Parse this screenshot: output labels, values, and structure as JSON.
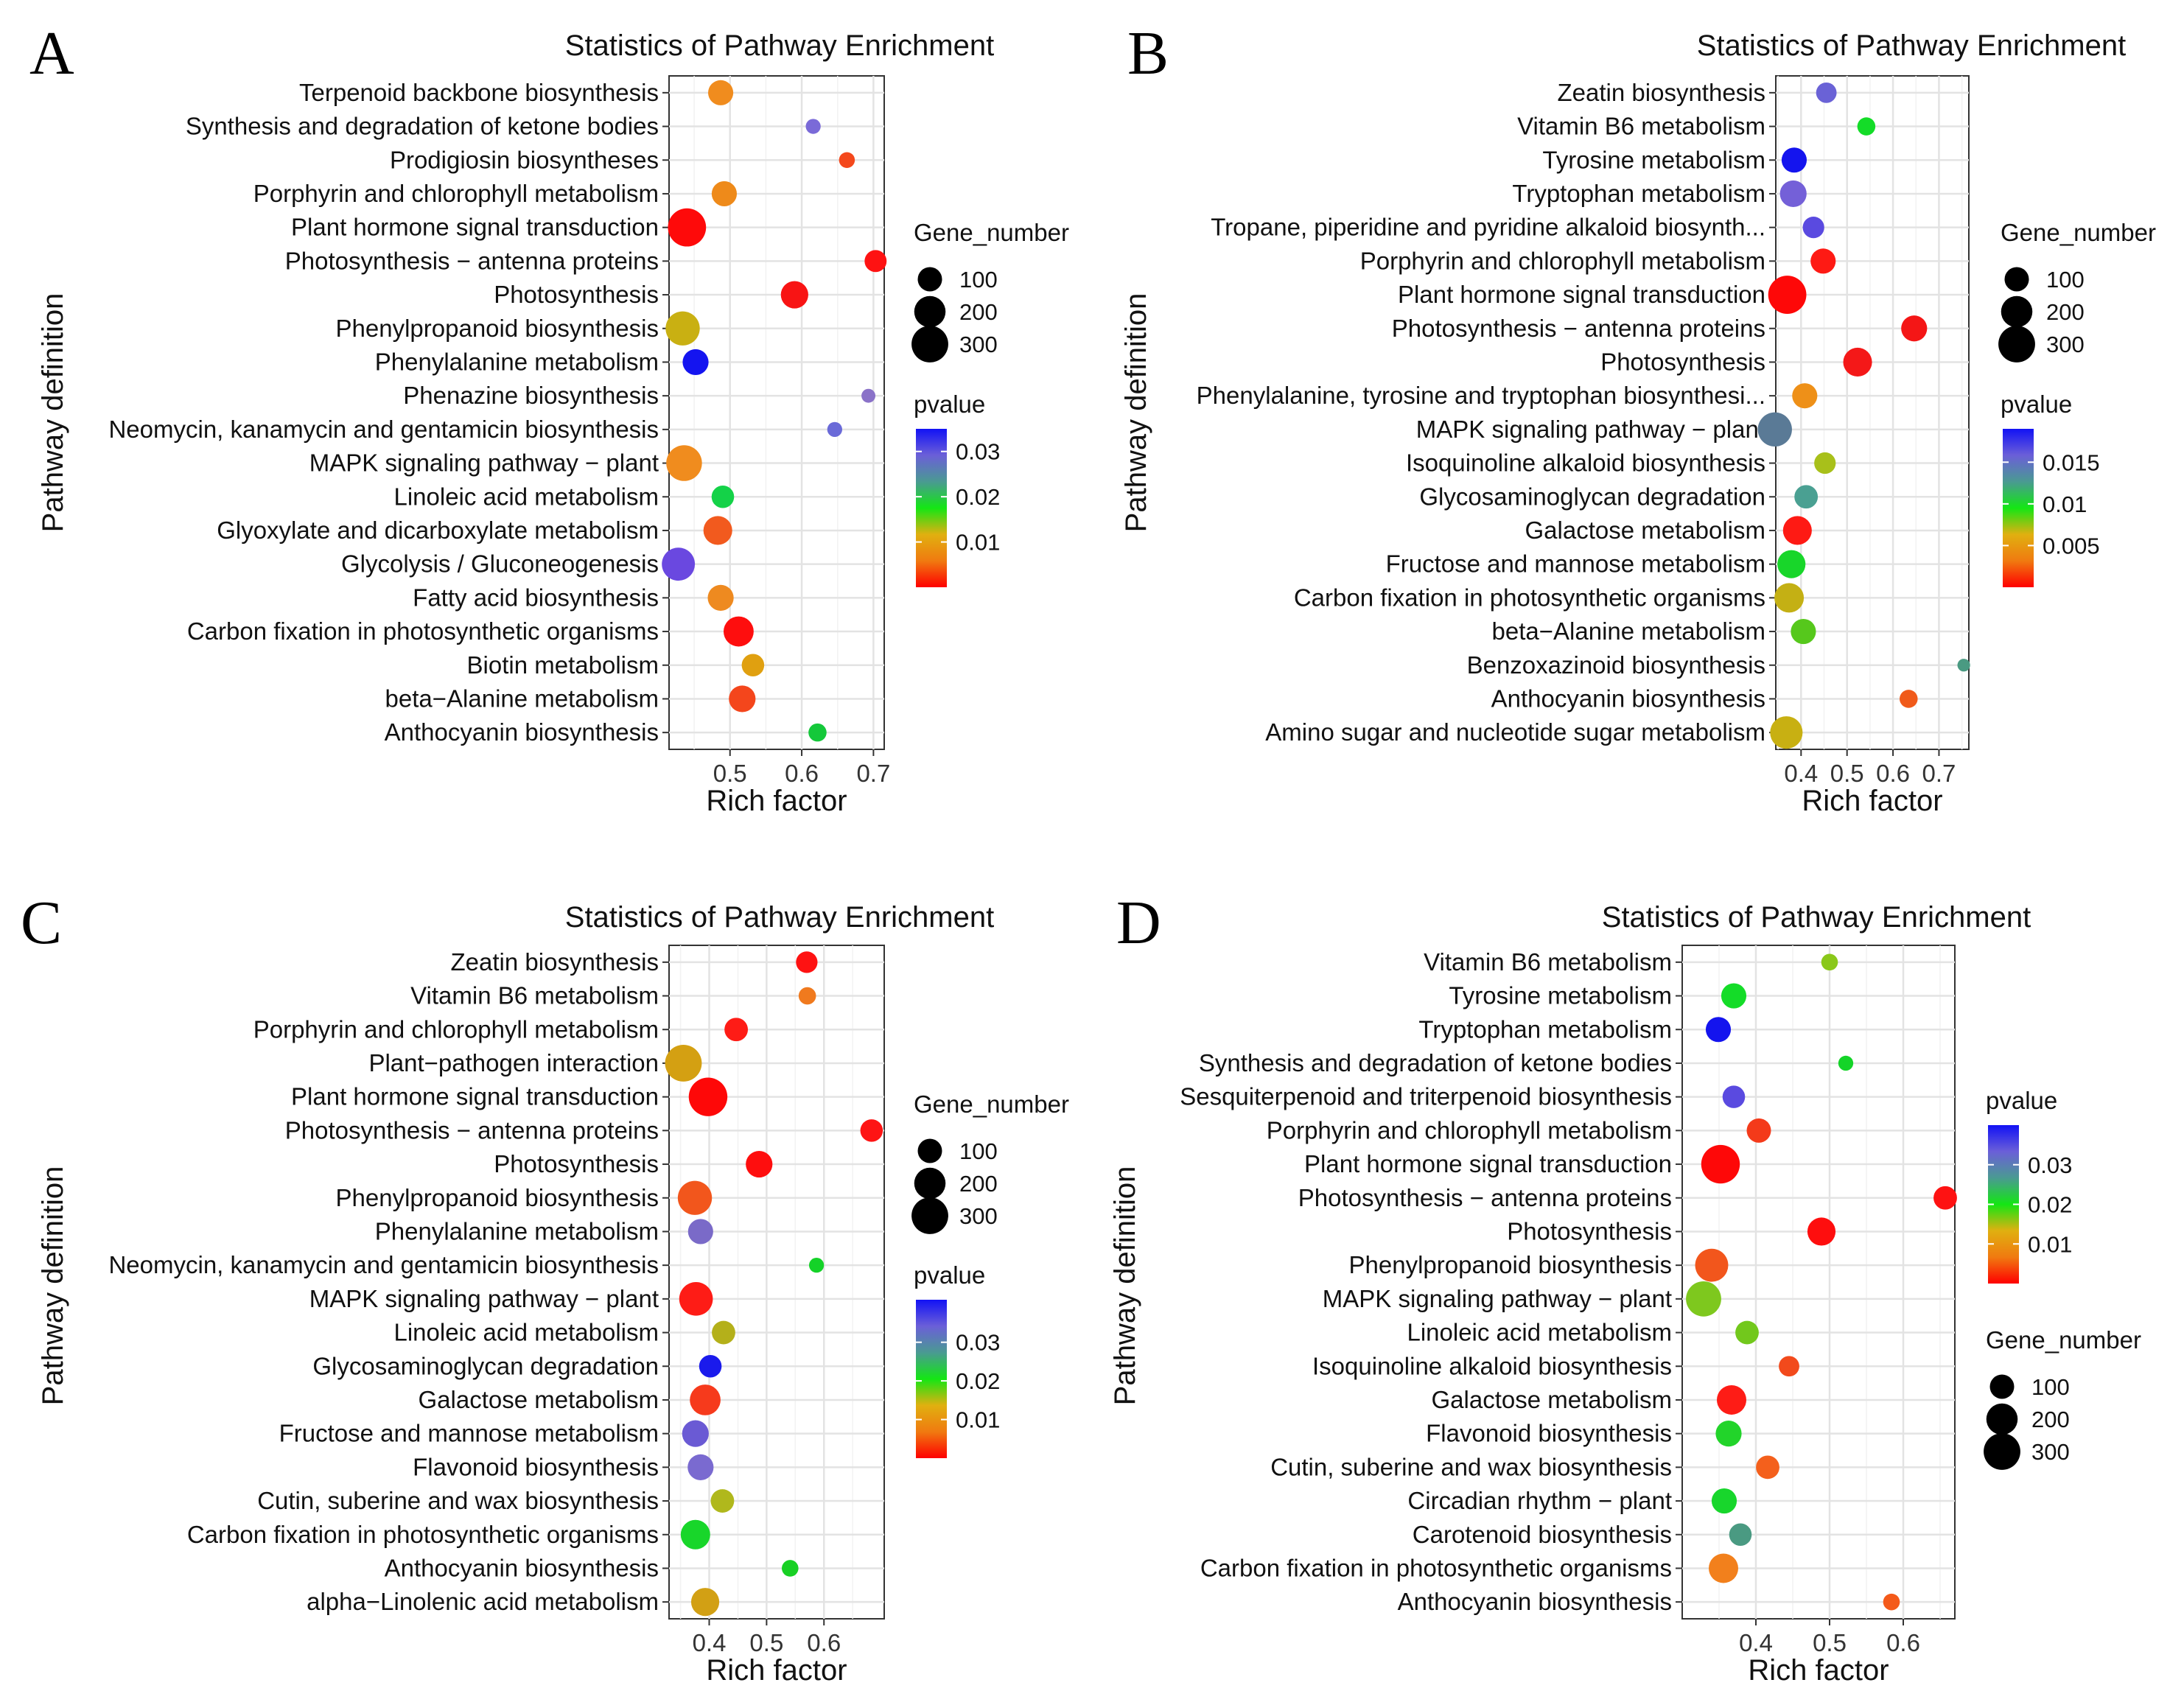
{
  "chart_data": [
    {
      "panel": "A",
      "type": "scatter",
      "title": "Statistics of Pathway Enrichment",
      "xlabel": "Rich factor",
      "ylabel": "Pathway definition",
      "xticks": [
        0.5,
        0.6,
        0.7
      ],
      "xlim": [
        0.415,
        0.715
      ],
      "size_legend": {
        "title": "Gene_number",
        "values": [
          100,
          200,
          300
        ]
      },
      "color_legend": {
        "title": "pvalue",
        "ticks": [
          0.03,
          0.02,
          0.01
        ],
        "range": [
          0.0,
          0.035
        ]
      },
      "legend_order": [
        "size",
        "color"
      ],
      "points": [
        {
          "pathway": "Terpenoid backbone biosynthesis",
          "x": 0.487,
          "gene_number": 110,
          "color": "#f08c1e"
        },
        {
          "pathway": "Synthesis and degradation of ketone bodies",
          "x": 0.616,
          "gene_number": 20,
          "color": "#7a6ad8"
        },
        {
          "pathway": "Prodigiosin biosyntheses",
          "x": 0.663,
          "gene_number": 25,
          "color": "#f4481c"
        },
        {
          "pathway": "Porphyrin and chlorophyll metabolism",
          "x": 0.492,
          "gene_number": 110,
          "color": "#ee8a1a"
        },
        {
          "pathway": "Plant hormone signal transduction",
          "x": 0.44,
          "gene_number": 330,
          "color": "#fe0a0a"
        },
        {
          "pathway": "Photosynthesis − antenna proteins",
          "x": 0.703,
          "gene_number": 75,
          "color": "#fe1212"
        },
        {
          "pathway": "Photosynthesis",
          "x": 0.59,
          "gene_number": 140,
          "color": "#f81414"
        },
        {
          "pathway": "Phenylpropanoid biosynthesis",
          "x": 0.434,
          "gene_number": 250,
          "color": "#c9b012"
        },
        {
          "pathway": "Phenylalanine metabolism",
          "x": 0.452,
          "gene_number": 120,
          "color": "#1414f0"
        },
        {
          "pathway": "Phenazine biosynthesis",
          "x": 0.693,
          "gene_number": 15,
          "color": "#8a72c8"
        },
        {
          "pathway": "Neomycin, kanamycin and gentamicin biosynthesis",
          "x": 0.646,
          "gene_number": 20,
          "color": "#6a6ad8"
        },
        {
          "pathway": "MAPK signaling pathway − plant",
          "x": 0.436,
          "gene_number": 280,
          "color": "#f08c1e"
        },
        {
          "pathway": "Linoleic acid metabolism",
          "x": 0.49,
          "gene_number": 80,
          "color": "#14d248"
        },
        {
          "pathway": "Glyoxylate and dicarboxylate metabolism",
          "x": 0.483,
          "gene_number": 160,
          "color": "#f25a1e"
        },
        {
          "pathway": "Glycolysis / Gluconeogenesis",
          "x": 0.428,
          "gene_number": 230,
          "color": "#6a48e0"
        },
        {
          "pathway": "Fatty acid biosynthesis",
          "x": 0.487,
          "gene_number": 120,
          "color": "#ee8a20"
        },
        {
          "pathway": "Carbon fixation in photosynthetic organisms",
          "x": 0.512,
          "gene_number": 180,
          "color": "#fe0e0e"
        },
        {
          "pathway": "Biotin metabolism",
          "x": 0.532,
          "gene_number": 80,
          "color": "#e0a010"
        },
        {
          "pathway": "beta−Alanine metabolism",
          "x": 0.517,
          "gene_number": 130,
          "color": "#f4461c"
        },
        {
          "pathway": "Anthocyanin biosynthesis",
          "x": 0.622,
          "gene_number": 40,
          "color": "#14c83a"
        }
      ]
    },
    {
      "panel": "B",
      "type": "scatter",
      "title": "Statistics of Pathway Enrichment",
      "xlabel": "Rich factor",
      "ylabel": "Pathway definition",
      "xticks": [
        0.4,
        0.5,
        0.6,
        0.7
      ],
      "xlim": [
        0.345,
        0.765
      ],
      "size_legend": {
        "title": "Gene_number",
        "values": [
          100,
          200,
          300
        ]
      },
      "color_legend": {
        "title": "pvalue",
        "ticks": [
          0.015,
          0.01,
          0.005
        ],
        "range": [
          0.0,
          0.019
        ]
      },
      "legend_order": [
        "size",
        "color"
      ],
      "points": [
        {
          "pathway": "Zeatin biosynthesis",
          "x": 0.455,
          "gene_number": 60,
          "color": "#6a62d6"
        },
        {
          "pathway": "Vitamin B6 metabolism",
          "x": 0.542,
          "gene_number": 40,
          "color": "#14dc28"
        },
        {
          "pathway": "Tyrosine metabolism",
          "x": 0.385,
          "gene_number": 110,
          "color": "#1414ee"
        },
        {
          "pathway": "Tryptophan metabolism",
          "x": 0.383,
          "gene_number": 130,
          "color": "#7460d8"
        },
        {
          "pathway": "Tropane, piperidine and pyridine alkaloid biosynth...",
          "x": 0.427,
          "gene_number": 70,
          "color": "#5a4ae0"
        },
        {
          "pathway": "Porphyrin and chlorophyll metabolism",
          "x": 0.448,
          "gene_number": 110,
          "color": "#fe1a14"
        },
        {
          "pathway": "Plant hormone signal transduction",
          "x": 0.37,
          "gene_number": 330,
          "color": "#fe0808"
        },
        {
          "pathway": "Photosynthesis − antenna proteins",
          "x": 0.646,
          "gene_number": 120,
          "color": "#f41616"
        },
        {
          "pathway": "Photosynthesis",
          "x": 0.523,
          "gene_number": 160,
          "color": "#f41818"
        },
        {
          "pathway": "Phenylalanine, tyrosine and tryptophan biosynthesi...",
          "x": 0.408,
          "gene_number": 110,
          "color": "#ee9018"
        },
        {
          "pathway": "MAPK signaling pathway − plant",
          "x": 0.343,
          "gene_number": 250,
          "color": "#5a7a96"
        },
        {
          "pathway": "Isoquinoline alkaloid biosynthesis",
          "x": 0.452,
          "gene_number": 70,
          "color": "#a8c01a"
        },
        {
          "pathway": "Glycosaminoglycan degradation",
          "x": 0.411,
          "gene_number": 90,
          "color": "#4aa092"
        },
        {
          "pathway": "Galactose metabolism",
          "x": 0.392,
          "gene_number": 160,
          "color": "#fe1a14"
        },
        {
          "pathway": "Fructose and mannose metabolism",
          "x": 0.379,
          "gene_number": 150,
          "color": "#18d62a"
        },
        {
          "pathway": "Carbon fixation in photosynthetic organisms",
          "x": 0.374,
          "gene_number": 170,
          "color": "#c4b014"
        },
        {
          "pathway": "beta−Alanine metabolism",
          "x": 0.405,
          "gene_number": 110,
          "color": "#56c81c"
        },
        {
          "pathway": "Benzoxazinoid biosynthesis",
          "x": 0.754,
          "gene_number": 10,
          "color": "#4a9a82"
        },
        {
          "pathway": "Anthocyanin biosynthesis",
          "x": 0.634,
          "gene_number": 40,
          "color": "#f05a1a"
        },
        {
          "pathway": "Amino sugar and nucleotide sugar metabolism",
          "x": 0.368,
          "gene_number": 220,
          "color": "#c8b012"
        }
      ]
    },
    {
      "panel": "C",
      "type": "scatter",
      "title": "Statistics of Pathway Enrichment",
      "xlabel": "Rich factor",
      "ylabel": "Pathway definition",
      "xticks": [
        0.4,
        0.5,
        0.6
      ],
      "xlim": [
        0.33,
        0.705
      ],
      "size_legend": {
        "title": "Gene_number",
        "values": [
          100,
          200,
          300
        ]
      },
      "color_legend": {
        "title": "pvalue",
        "ticks": [
          0.03,
          0.02,
          0.01
        ],
        "range": [
          0.0,
          0.041
        ]
      },
      "legend_order": [
        "size",
        "color"
      ],
      "points": [
        {
          "pathway": "Zeatin biosynthesis",
          "x": 0.57,
          "gene_number": 70,
          "color": "#fe1212"
        },
        {
          "pathway": "Vitamin B6 metabolism",
          "x": 0.571,
          "gene_number": 35,
          "color": "#f07a1e"
        },
        {
          "pathway": "Porphyrin and chlorophyll metabolism",
          "x": 0.447,
          "gene_number": 90,
          "color": "#fe1c16"
        },
        {
          "pathway": "Plant−pathogen interaction",
          "x": 0.355,
          "gene_number": 300,
          "color": "#d4a012"
        },
        {
          "pathway": "Plant hormone signal transduction",
          "x": 0.398,
          "gene_number": 340,
          "color": "#fe0808"
        },
        {
          "pathway": "Photosynthesis − antenna proteins",
          "x": 0.683,
          "gene_number": 80,
          "color": "#fe1414"
        },
        {
          "pathway": "Photosynthesis",
          "x": 0.487,
          "gene_number": 130,
          "color": "#fe0e0e"
        },
        {
          "pathway": "Phenylpropanoid biosynthesis",
          "x": 0.375,
          "gene_number": 250,
          "color": "#f2561c"
        },
        {
          "pathway": "Phenylalanine metabolism",
          "x": 0.385,
          "gene_number": 110,
          "color": "#7a6ac8"
        },
        {
          "pathway": "Neomycin, kanamycin and gentamicin biosynthesis",
          "x": 0.587,
          "gene_number": 20,
          "color": "#14d228"
        },
        {
          "pathway": "MAPK signaling pathway − plant",
          "x": 0.377,
          "gene_number": 240,
          "color": "#fe1c16"
        },
        {
          "pathway": "Linoleic acid metabolism",
          "x": 0.425,
          "gene_number": 90,
          "color": "#b4b01a"
        },
        {
          "pathway": "Glycosaminoglycan degradation",
          "x": 0.402,
          "gene_number": 80,
          "color": "#1a1aec"
        },
        {
          "pathway": "Galactose metabolism",
          "x": 0.393,
          "gene_number": 190,
          "color": "#f63a1c"
        },
        {
          "pathway": "Fructose and mannose metabolism",
          "x": 0.376,
          "gene_number": 130,
          "color": "#6a5ad4"
        },
        {
          "pathway": "Flavonoid biosynthesis",
          "x": 0.385,
          "gene_number": 120,
          "color": "#7a6ad0"
        },
        {
          "pathway": "Cutin, suberine and wax biosynthesis",
          "x": 0.423,
          "gene_number": 90,
          "color": "#b0b81c"
        },
        {
          "pathway": "Carbon fixation in photosynthetic organisms",
          "x": 0.376,
          "gene_number": 170,
          "color": "#18d62a"
        },
        {
          "pathway": "Anthocyanin biosynthesis",
          "x": 0.541,
          "gene_number": 30,
          "color": "#18d024"
        },
        {
          "pathway": "alpha−Linolenic acid metabolism",
          "x": 0.393,
          "gene_number": 150,
          "color": "#d2a014"
        }
      ]
    },
    {
      "panel": "D",
      "type": "scatter",
      "title": "Statistics of Pathway Enrichment",
      "xlabel": "Rich factor",
      "ylabel": "Pathway definition",
      "xticks": [
        0.4,
        0.5,
        0.6
      ],
      "xlim": [
        0.3,
        0.67
      ],
      "size_legend": {
        "title": "Gene_number",
        "values": [
          100,
          200,
          300
        ]
      },
      "color_legend": {
        "title": "pvalue",
        "ticks": [
          0.03,
          0.02,
          0.01
        ],
        "range": [
          0.0,
          0.04
        ]
      },
      "legend_order": [
        "color",
        "size"
      ],
      "points": [
        {
          "pathway": "Vitamin B6 metabolism",
          "x": 0.5,
          "gene_number": 30,
          "color": "#8ac81a"
        },
        {
          "pathway": "Tyrosine metabolism",
          "x": 0.37,
          "gene_number": 110,
          "color": "#14dc28"
        },
        {
          "pathway": "Tryptophan metabolism",
          "x": 0.349,
          "gene_number": 110,
          "color": "#1414ee"
        },
        {
          "pathway": "Synthesis and degradation of ketone bodies",
          "x": 0.522,
          "gene_number": 20,
          "color": "#14d428"
        },
        {
          "pathway": "Sesquiterpenoid and triterpenoid biosynthesis",
          "x": 0.37,
          "gene_number": 80,
          "color": "#5a4ae0"
        },
        {
          "pathway": "Porphyrin and chlorophyll metabolism",
          "x": 0.404,
          "gene_number": 100,
          "color": "#f43a1a"
        },
        {
          "pathway": "Plant hormone signal transduction",
          "x": 0.352,
          "gene_number": 340,
          "color": "#fe0808"
        },
        {
          "pathway": "Photosynthesis − antenna proteins",
          "x": 0.657,
          "gene_number": 90,
          "color": "#fe1212"
        },
        {
          "pathway": "Photosynthesis",
          "x": 0.489,
          "gene_number": 150,
          "color": "#fe0e0e"
        },
        {
          "pathway": "Phenylpropanoid biosynthesis",
          "x": 0.34,
          "gene_number": 230,
          "color": "#f2561c"
        },
        {
          "pathway": "MAPK signaling pathway − plant",
          "x": 0.329,
          "gene_number": 270,
          "color": "#7ec81e"
        },
        {
          "pathway": "Linoleic acid metabolism",
          "x": 0.388,
          "gene_number": 90,
          "color": "#72c81c"
        },
        {
          "pathway": "Isoquinoline alkaloid biosynthesis",
          "x": 0.445,
          "gene_number": 60,
          "color": "#f24a1c"
        },
        {
          "pathway": "Galactose metabolism",
          "x": 0.367,
          "gene_number": 170,
          "color": "#fe1c16"
        },
        {
          "pathway": "Flavonoid biosynthesis",
          "x": 0.363,
          "gene_number": 120,
          "color": "#22d42a"
        },
        {
          "pathway": "Cutin, suberine and wax biosynthesis",
          "x": 0.416,
          "gene_number": 90,
          "color": "#f4601c"
        },
        {
          "pathway": "Circadian rhythm − plant",
          "x": 0.357,
          "gene_number": 110,
          "color": "#18d62c"
        },
        {
          "pathway": "Carotenoid biosynthesis",
          "x": 0.379,
          "gene_number": 80,
          "color": "#4a9a82"
        },
        {
          "pathway": "Carbon fixation in photosynthetic organisms",
          "x": 0.356,
          "gene_number": 170,
          "color": "#f2801c"
        },
        {
          "pathway": "Anthocyanin biosynthesis",
          "x": 0.584,
          "gene_number": 30,
          "color": "#f45a1a"
        }
      ]
    }
  ]
}
